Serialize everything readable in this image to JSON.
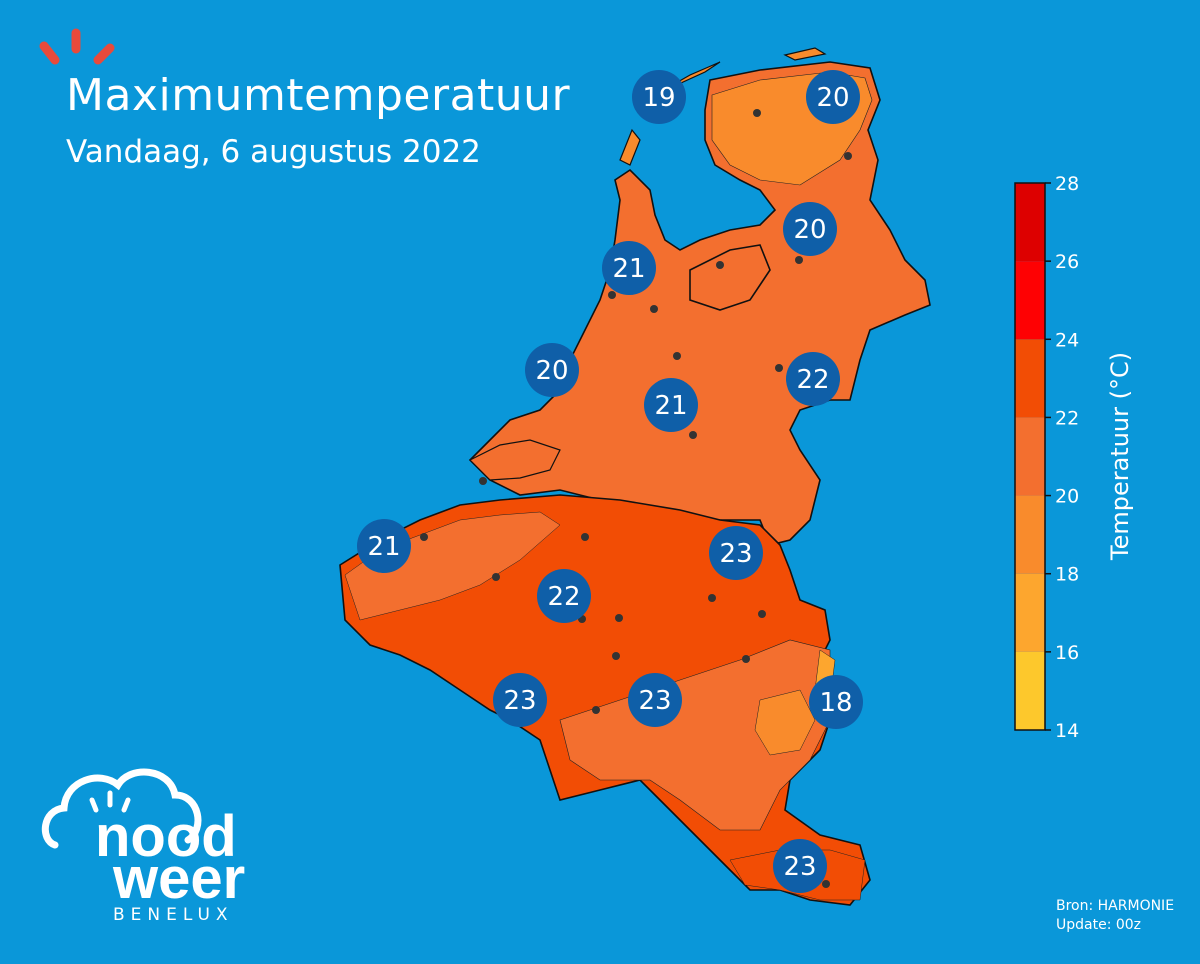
{
  "header": {
    "title": "Maximumtemperatuur",
    "subtitle": "Vandaag, 6 augustus 2022"
  },
  "legend": {
    "label": "Temperatuur (°C)",
    "ticks": [
      "28",
      "26",
      "24",
      "22",
      "20",
      "18",
      "16",
      "14"
    ],
    "bands": [
      {
        "from": 14,
        "to": 16,
        "color": "#fdc82c"
      },
      {
        "from": 16,
        "to": 18,
        "color": "#fda62e"
      },
      {
        "from": 18,
        "to": 20,
        "color": "#f98b2c"
      },
      {
        "from": 20,
        "to": 22,
        "color": "#f36f2f"
      },
      {
        "from": 22,
        "to": 24,
        "color": "#f24d05"
      },
      {
        "from": 24,
        "to": 26,
        "color": "#fe0103"
      },
      {
        "from": 26,
        "to": 28,
        "color": "#dd0000"
      }
    ]
  },
  "markers": [
    {
      "label": "19"
    },
    {
      "label": "20"
    },
    {
      "label": "20"
    },
    {
      "label": "21"
    },
    {
      "label": "20"
    },
    {
      "label": "22"
    },
    {
      "label": "21"
    },
    {
      "label": "21"
    },
    {
      "label": "23"
    },
    {
      "label": "22"
    },
    {
      "label": "23"
    },
    {
      "label": "23"
    },
    {
      "label": "18"
    },
    {
      "label": "23"
    }
  ],
  "footer": {
    "source": "Bron: HARMONIE",
    "update": "Update: 00z"
  },
  "brand": {
    "line1": "nood",
    "line2": "weer",
    "line3": "BENELUX"
  },
  "colors": {
    "sea": "#0a97d9",
    "marker": "#0f5fa8",
    "logo_accent": "#e84a3b"
  }
}
